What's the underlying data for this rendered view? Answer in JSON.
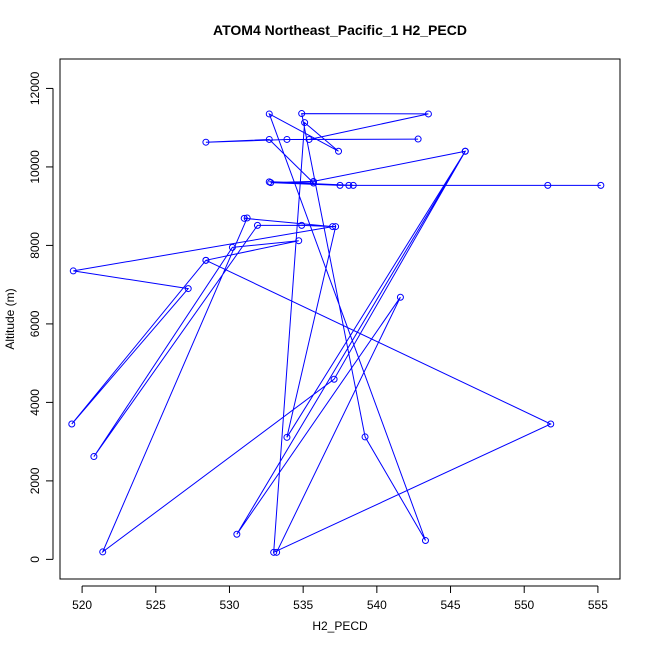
{
  "chart_data": {
    "type": "line",
    "title": "ATOM4 Northeast_Pacific_1 H2_PECD",
    "xlabel": "H2_PECD",
    "ylabel": "Altitude (m)",
    "xlim": [
      518.5,
      556.5
    ],
    "ylim": [
      -500,
      12750
    ],
    "xticks": [
      520,
      525,
      530,
      535,
      540,
      545,
      550,
      555
    ],
    "yticks": [
      0,
      2000,
      4000,
      6000,
      8000,
      10000,
      12000
    ],
    "grid": false,
    "color": "#0000ff",
    "series": [
      {
        "points": [
          [
            533.2,
            180
          ],
          [
            541.6,
            6680
          ],
          [
            530.5,
            640
          ],
          [
            546.0,
            10400
          ],
          [
            537.1,
            4590
          ],
          [
            521.4,
            190
          ],
          [
            531.2,
            8700
          ],
          [
            531.0,
            8690
          ],
          [
            537.0,
            8480
          ],
          [
            519.4,
            7350
          ],
          [
            527.2,
            6900
          ],
          [
            519.3,
            3450
          ],
          [
            528.4,
            7620
          ],
          [
            534.7,
            8120
          ],
          [
            530.2,
            7950
          ],
          [
            520.8,
            2620
          ],
          [
            531.9,
            8510
          ],
          [
            534.9,
            8510
          ],
          [
            537.2,
            8480
          ],
          [
            533.9,
            3110
          ],
          [
            546.0,
            10400
          ],
          [
            535.7,
            9630
          ],
          [
            532.8,
            9600
          ],
          [
            537.5,
            9530
          ],
          [
            538.1,
            9530
          ],
          [
            555.2,
            9530
          ],
          [
            551.6,
            9530
          ],
          [
            538.4,
            9530
          ],
          [
            532.7,
            9620
          ],
          [
            535.7,
            9590
          ],
          [
            532.7,
            10700
          ],
          [
            528.4,
            10630
          ],
          [
            533.9,
            10700
          ],
          [
            542.8,
            10710
          ],
          [
            535.4,
            10700
          ],
          [
            543.5,
            11350
          ],
          [
            534.9,
            11360
          ],
          [
            539.2,
            3120
          ],
          [
            543.3,
            480
          ],
          [
            532.7,
            11350
          ],
          [
            537.4,
            10400
          ],
          [
            535.1,
            11130
          ],
          [
            533.0,
            180
          ],
          [
            551.8,
            3450
          ],
          [
            528.4,
            7620
          ]
        ]
      }
    ]
  }
}
